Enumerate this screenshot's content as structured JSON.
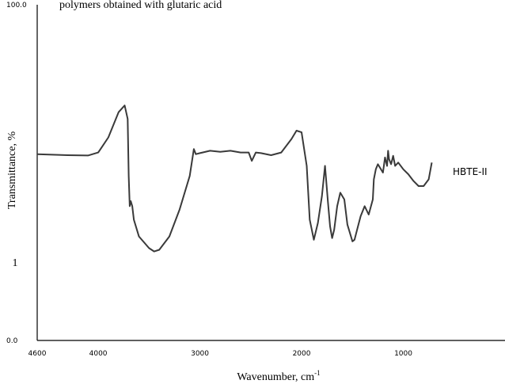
{
  "header_fragment": "polymers obtained with glutaric acid",
  "chart_data": {
    "type": "line",
    "title": "",
    "xlabel": "Wavenumber, cm",
    "xlabel_sup": "-1",
    "ylabel": "Transmittance, %",
    "y_tick_labels": [
      {
        "value": 0,
        "label": "0.0"
      },
      {
        "value": 100,
        "label": "100.0"
      }
    ],
    "x_tick_labels": [
      {
        "value": 4600,
        "label": "4600"
      },
      {
        "value": 4000,
        "label": "4000"
      },
      {
        "value": 3000,
        "label": "3000"
      },
      {
        "value": 2000,
        "label": "2000"
      },
      {
        "value": 1000,
        "label": "1000"
      }
    ],
    "xlim": [
      4600,
      0
    ],
    "ylim": [
      0,
      100
    ],
    "grid": false,
    "color": "#3a3a3a",
    "series": [
      {
        "name": "HBTE-II",
        "x": [
          4600,
          4300,
          4100,
          4000,
          3900,
          3800,
          3740,
          3710,
          3700,
          3690,
          3680,
          3665,
          3650,
          3600,
          3500,
          3450,
          3400,
          3300,
          3200,
          3100,
          3060,
          3040,
          3000,
          2900,
          2800,
          2700,
          2600,
          2520,
          2490,
          2450,
          2400,
          2300,
          2200,
          2100,
          2050,
          2000,
          1950,
          1920,
          1880,
          1840,
          1800,
          1770,
          1740,
          1720,
          1700,
          1680,
          1650,
          1620,
          1580,
          1550,
          1500,
          1480,
          1450,
          1420,
          1380,
          1340,
          1300,
          1290,
          1270,
          1250,
          1200,
          1180,
          1160,
          1150,
          1140,
          1120,
          1100,
          1080,
          1050,
          1000,
          950,
          900,
          850,
          800,
          750,
          720
        ],
        "y": [
          55.5,
          55.2,
          55.1,
          56.0,
          60.5,
          68.0,
          70.0,
          66.0,
          49.0,
          40.0,
          41.5,
          40.0,
          36.0,
          31.0,
          27.5,
          26.5,
          27.0,
          31.0,
          39.0,
          49.0,
          57.0,
          55.5,
          55.8,
          56.5,
          56.2,
          56.5,
          56.0,
          56.0,
          53.5,
          56.0,
          55.8,
          55.2,
          56.0,
          60.0,
          62.5,
          62.0,
          52.0,
          36.0,
          30.0,
          35.0,
          43.0,
          52.0,
          41.0,
          34.0,
          30.5,
          33.0,
          40.0,
          44.0,
          42.0,
          34.5,
          29.5,
          30.0,
          33.5,
          37.0,
          40.0,
          37.5,
          42.0,
          48.0,
          51.0,
          52.5,
          50.0,
          54.5,
          52.0,
          56.5,
          54.0,
          52.5,
          55.0,
          52.0,
          53.0,
          51.0,
          49.5,
          47.5,
          46.0,
          46.0,
          48.0,
          53.0
        ]
      }
    ]
  }
}
